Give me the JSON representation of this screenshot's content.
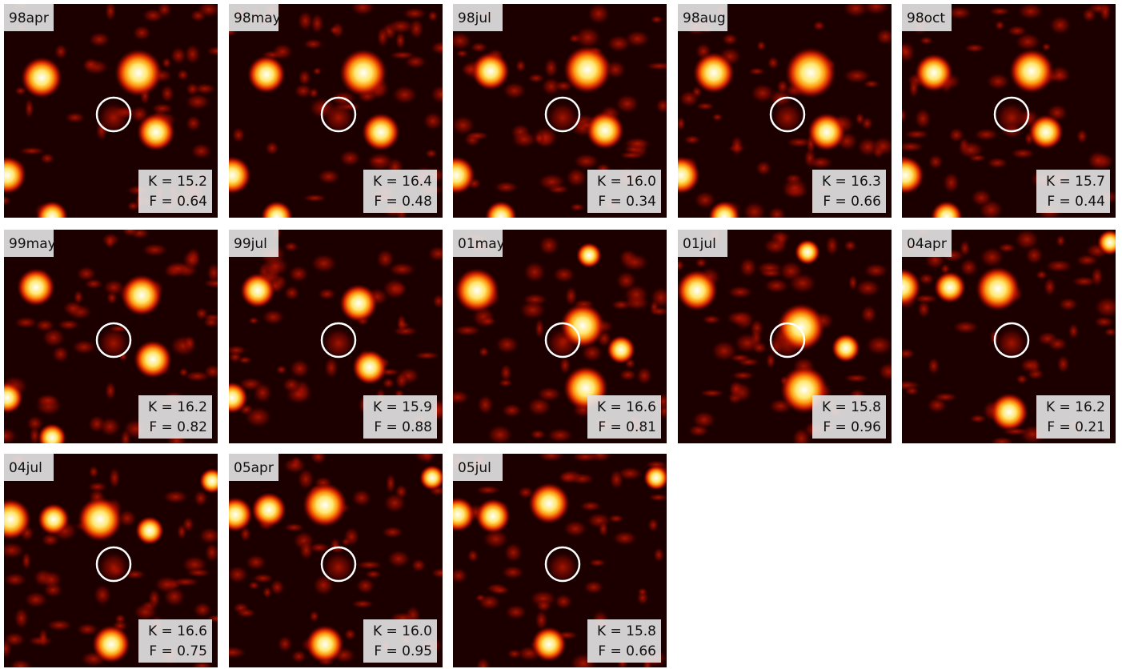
{
  "panels": [
    {
      "label": "98apr",
      "k": "K = 15.2",
      "f": "F = 0.64"
    },
    {
      "label": "98may",
      "k": "K = 16.4",
      "f": "F = 0.48"
    },
    {
      "label": "98jul",
      "k": "K = 16.0",
      "f": "F = 0.34"
    },
    {
      "label": "98aug",
      "k": "K = 16.3",
      "f": "F = 0.66"
    },
    {
      "label": "98oct",
      "k": "K = 15.7",
      "f": "F = 0.44"
    },
    {
      "label": "99may",
      "k": "K = 16.2",
      "f": "F = 0.82"
    },
    {
      "label": "99jul",
      "k": "K = 15.9",
      "f": "F = 0.88"
    },
    {
      "label": "01may",
      "k": "K = 16.6",
      "f": "F = 0.81"
    },
    {
      "label": "01jul",
      "k": "K = 15.8",
      "f": "F = 0.96"
    },
    {
      "label": "04apr",
      "k": "K = 16.2",
      "f": "F = 0.21"
    },
    {
      "label": "04jul",
      "k": "K = 16.6",
      "f": "F = 0.75"
    },
    {
      "label": "05apr",
      "k": "K = 16.0",
      "f": "F = 0.95"
    },
    {
      "label": "05jul",
      "k": "K = 15.8",
      "f": "F = 0.66"
    }
  ]
}
